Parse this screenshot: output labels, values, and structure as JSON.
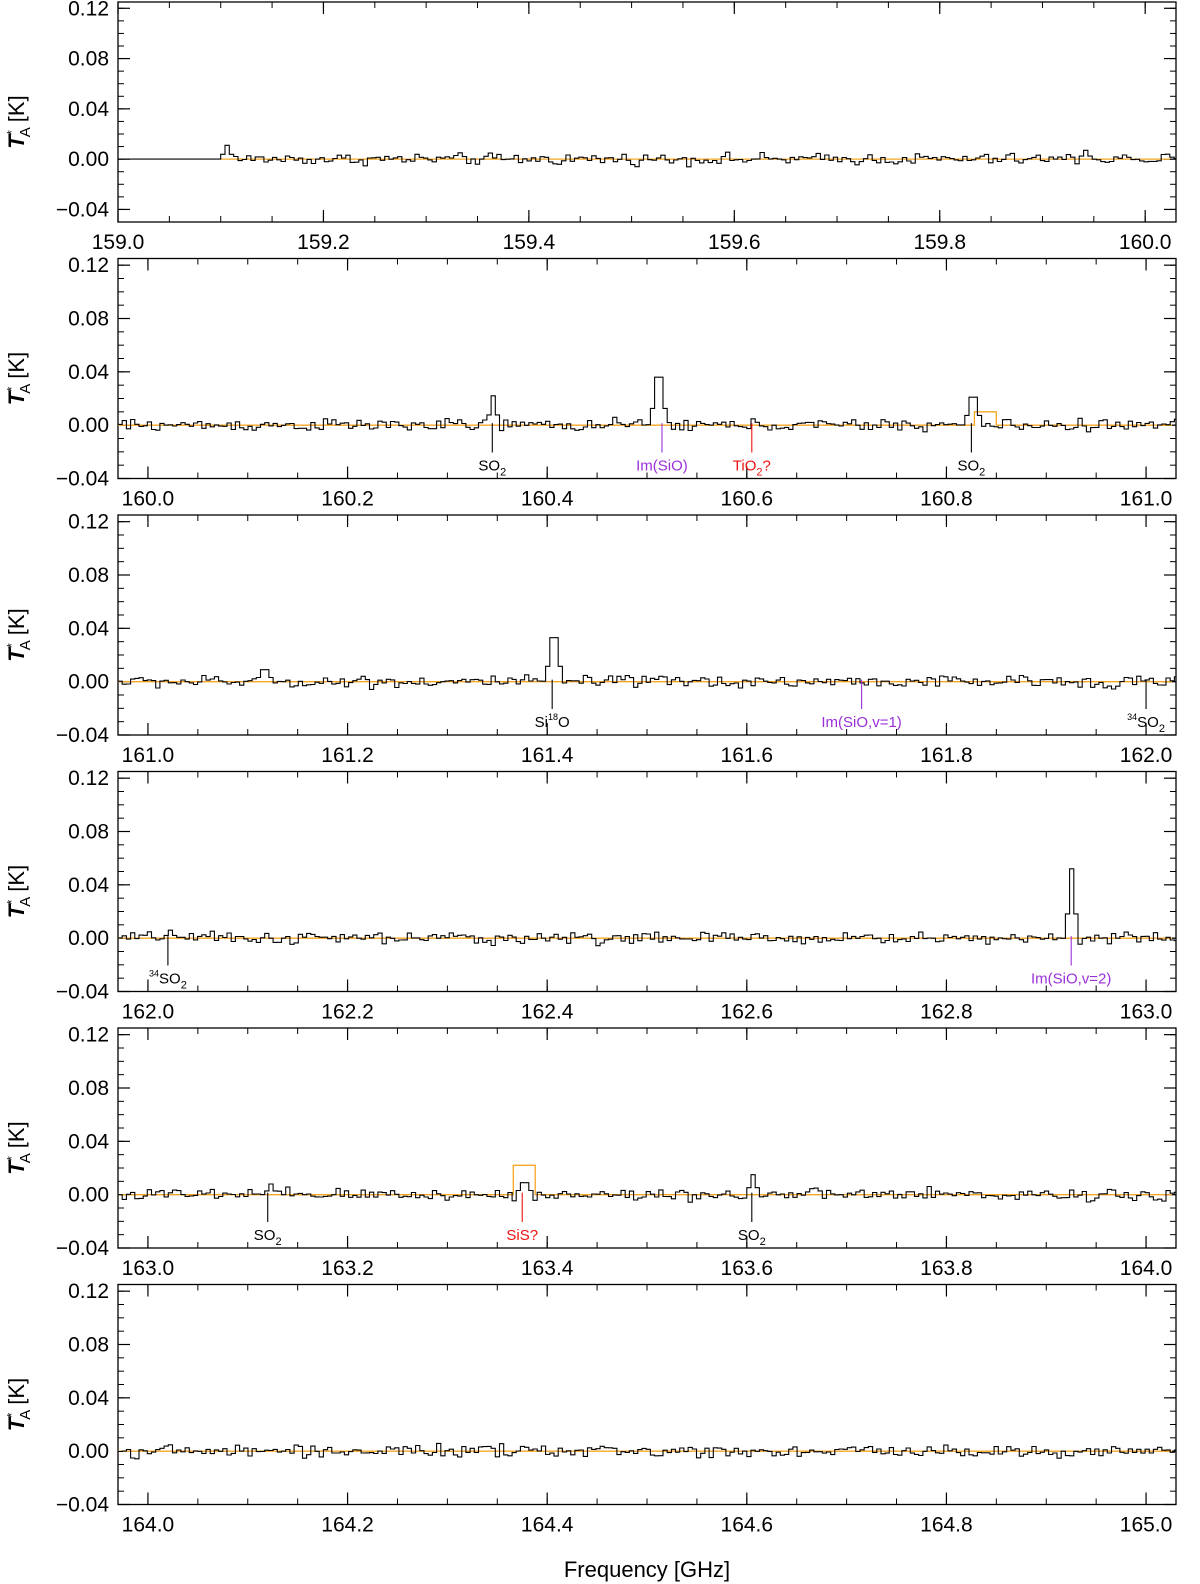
{
  "figure": {
    "xlabel": "Frequency [GHz]",
    "ylabel": {
      "symbol": "T",
      "sup": "*",
      "sub": "A",
      "unit": "[K]"
    },
    "colors": {
      "spectrum": "#000000",
      "model": "#f5a623",
      "id_black": "#000000",
      "id_purple": "#9b30d9",
      "id_red": "#ee1111"
    }
  },
  "chart_data": [
    {
      "type": "line",
      "xlim": [
        159.0,
        160.03
      ],
      "ylim": [
        -0.05,
        0.125
      ],
      "xticks": [
        "159.0",
        "159.2",
        "159.4",
        "159.6",
        "159.8",
        "160.0"
      ],
      "yticks": [
        "0.12",
        "0.08",
        "0.04",
        "0.00",
        "−0.04"
      ],
      "data_start": 159.1,
      "series": [
        {
          "peaks": [
            {
              "x": 159.105,
              "y": 0.011
            },
            {
              "x": 159.94,
              "y": 0.007
            }
          ]
        }
      ],
      "model": [],
      "annotations": []
    },
    {
      "type": "line",
      "xlim": [
        159.97,
        161.03
      ],
      "ylim": [
        -0.04,
        0.125
      ],
      "xticks": [
        "160.0",
        "160.2",
        "160.4",
        "160.6",
        "160.8",
        "161.0"
      ],
      "yticks": [
        "0.12",
        "0.08",
        "0.04",
        "0.00",
        "−0.04"
      ],
      "data_start": 159.97,
      "series": [
        {
          "peaks": [
            {
              "x": 160.345,
              "y": 0.022
            },
            {
              "x": 160.51,
              "y": 0.036
            },
            {
              "x": 160.825,
              "y": 0.021
            }
          ]
        }
      ],
      "model": [
        {
          "x": 160.825,
          "y": 0.01
        }
      ],
      "annotations": [
        {
          "x": 160.345,
          "label": "SO",
          "sub": "2",
          "sup": "",
          "color": "black"
        },
        {
          "x": 160.515,
          "label": "Im(SiO)",
          "sub": "",
          "sup": "",
          "color": "purple"
        },
        {
          "x": 160.605,
          "label": "TiO",
          "sub": "2",
          "sup": "",
          "tail": "?",
          "color": "red"
        },
        {
          "x": 160.825,
          "label": "SO",
          "sub": "2",
          "sup": "",
          "color": "black"
        }
      ]
    },
    {
      "type": "line",
      "xlim": [
        160.97,
        162.03
      ],
      "ylim": [
        -0.04,
        0.125
      ],
      "xticks": [
        "161.0",
        "161.2",
        "161.4",
        "161.6",
        "161.8",
        "162.0"
      ],
      "yticks": [
        "0.12",
        "0.08",
        "0.04",
        "0.00",
        "−0.04"
      ],
      "data_start": 160.97,
      "series": [
        {
          "peaks": [
            {
              "x": 161.405,
              "y": 0.033
            },
            {
              "x": 161.115,
              "y": 0.009
            }
          ]
        }
      ],
      "model": [],
      "annotations": [
        {
          "x": 161.405,
          "label": "Si",
          "sup": "18",
          "post": "O",
          "sub": "",
          "color": "black"
        },
        {
          "x": 161.715,
          "label": "Im(SiO,v=1)",
          "sub": "",
          "sup": "",
          "color": "purple"
        },
        {
          "x": 162.0,
          "label": "SO",
          "sub": "2",
          "sup": "34",
          "color": "black"
        }
      ]
    },
    {
      "type": "line",
      "xlim": [
        161.97,
        163.03
      ],
      "ylim": [
        -0.04,
        0.125
      ],
      "xticks": [
        "162.0",
        "162.2",
        "162.4",
        "162.6",
        "162.8",
        "163.0"
      ],
      "yticks": [
        "0.12",
        "0.08",
        "0.04",
        "0.00",
        "−0.04"
      ],
      "data_start": 161.97,
      "series": [
        {
          "peaks": [
            {
              "x": 162.925,
              "y": 0.052
            },
            {
              "x": 162.02,
              "y": 0.006
            }
          ]
        }
      ],
      "model": [],
      "annotations": [
        {
          "x": 162.02,
          "label": "SO",
          "sub": "2",
          "sup": "34",
          "color": "black"
        },
        {
          "x": 162.925,
          "label": "Im(SiO,v=2)",
          "sub": "",
          "sup": "",
          "color": "purple"
        }
      ]
    },
    {
      "type": "line",
      "xlim": [
        162.97,
        164.03
      ],
      "ylim": [
        -0.04,
        0.125
      ],
      "xticks": [
        "163.0",
        "163.2",
        "163.4",
        "163.6",
        "163.8",
        "164.0"
      ],
      "yticks": [
        "0.12",
        "0.08",
        "0.04",
        "0.00",
        "−0.04"
      ],
      "data_start": 162.97,
      "series": [
        {
          "peaks": [
            {
              "x": 163.12,
              "y": 0.008
            },
            {
              "x": 163.375,
              "y": 0.009
            },
            {
              "x": 163.605,
              "y": 0.015
            }
          ]
        }
      ],
      "model": [
        {
          "x": 163.375,
          "y": 0.022
        }
      ],
      "annotations": [
        {
          "x": 163.12,
          "label": "SO",
          "sub": "2",
          "sup": "",
          "color": "black"
        },
        {
          "x": 163.375,
          "label": "SiS",
          "sub": "",
          "sup": "",
          "tail": "?",
          "color": "red"
        },
        {
          "x": 163.605,
          "label": "SO",
          "sub": "2",
          "sup": "",
          "color": "black"
        }
      ]
    },
    {
      "type": "line",
      "xlim": [
        163.97,
        165.03
      ],
      "ylim": [
        -0.04,
        0.125
      ],
      "xticks": [
        "164.0",
        "164.2",
        "164.4",
        "164.6",
        "164.8",
        "165.0"
      ],
      "yticks": [
        "0.12",
        "0.08",
        "0.04",
        "0.00",
        "−0.04"
      ],
      "data_start": 163.97,
      "series": [
        {
          "peaks": []
        }
      ],
      "model": [],
      "annotations": []
    }
  ]
}
